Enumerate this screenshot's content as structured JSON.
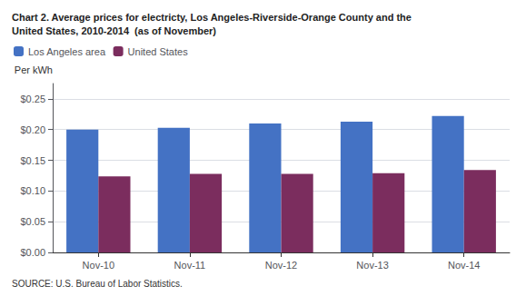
{
  "chart_data": {
    "type": "bar",
    "title": "Chart 2. Average prices for electricty, Los Angeles-Riverside-Orange County and the\nUnited States, 2010-2014  (as of November)",
    "ylabel": "Per kWh",
    "annotations": [
      "SOURCE: U.S. Bureau of Labor Statistics."
    ],
    "categories": [
      "Nov-10",
      "Nov-11",
      "Nov-12",
      "Nov-13",
      "Nov-14"
    ],
    "series": [
      {
        "name": "Los Angeles area",
        "color": "#4472C4",
        "values": [
          0.2,
          0.203,
          0.21,
          0.213,
          0.222
        ]
      },
      {
        "name": "United States",
        "color": "#7B2D5E",
        "values": [
          0.124,
          0.128,
          0.128,
          0.129,
          0.134
        ]
      }
    ],
    "ylim": [
      0,
      0.275
    ],
    "yticks": [
      {
        "value": 0.0,
        "label": "$0.00"
      },
      {
        "value": 0.05,
        "label": "$0.05"
      },
      {
        "value": 0.1,
        "label": "$0.10"
      },
      {
        "value": 0.15,
        "label": "$0.15"
      },
      {
        "value": 0.2,
        "label": "$0.20"
      },
      {
        "value": 0.25,
        "label": "$0.25"
      }
    ],
    "grid": true,
    "legend": "upper left"
  }
}
